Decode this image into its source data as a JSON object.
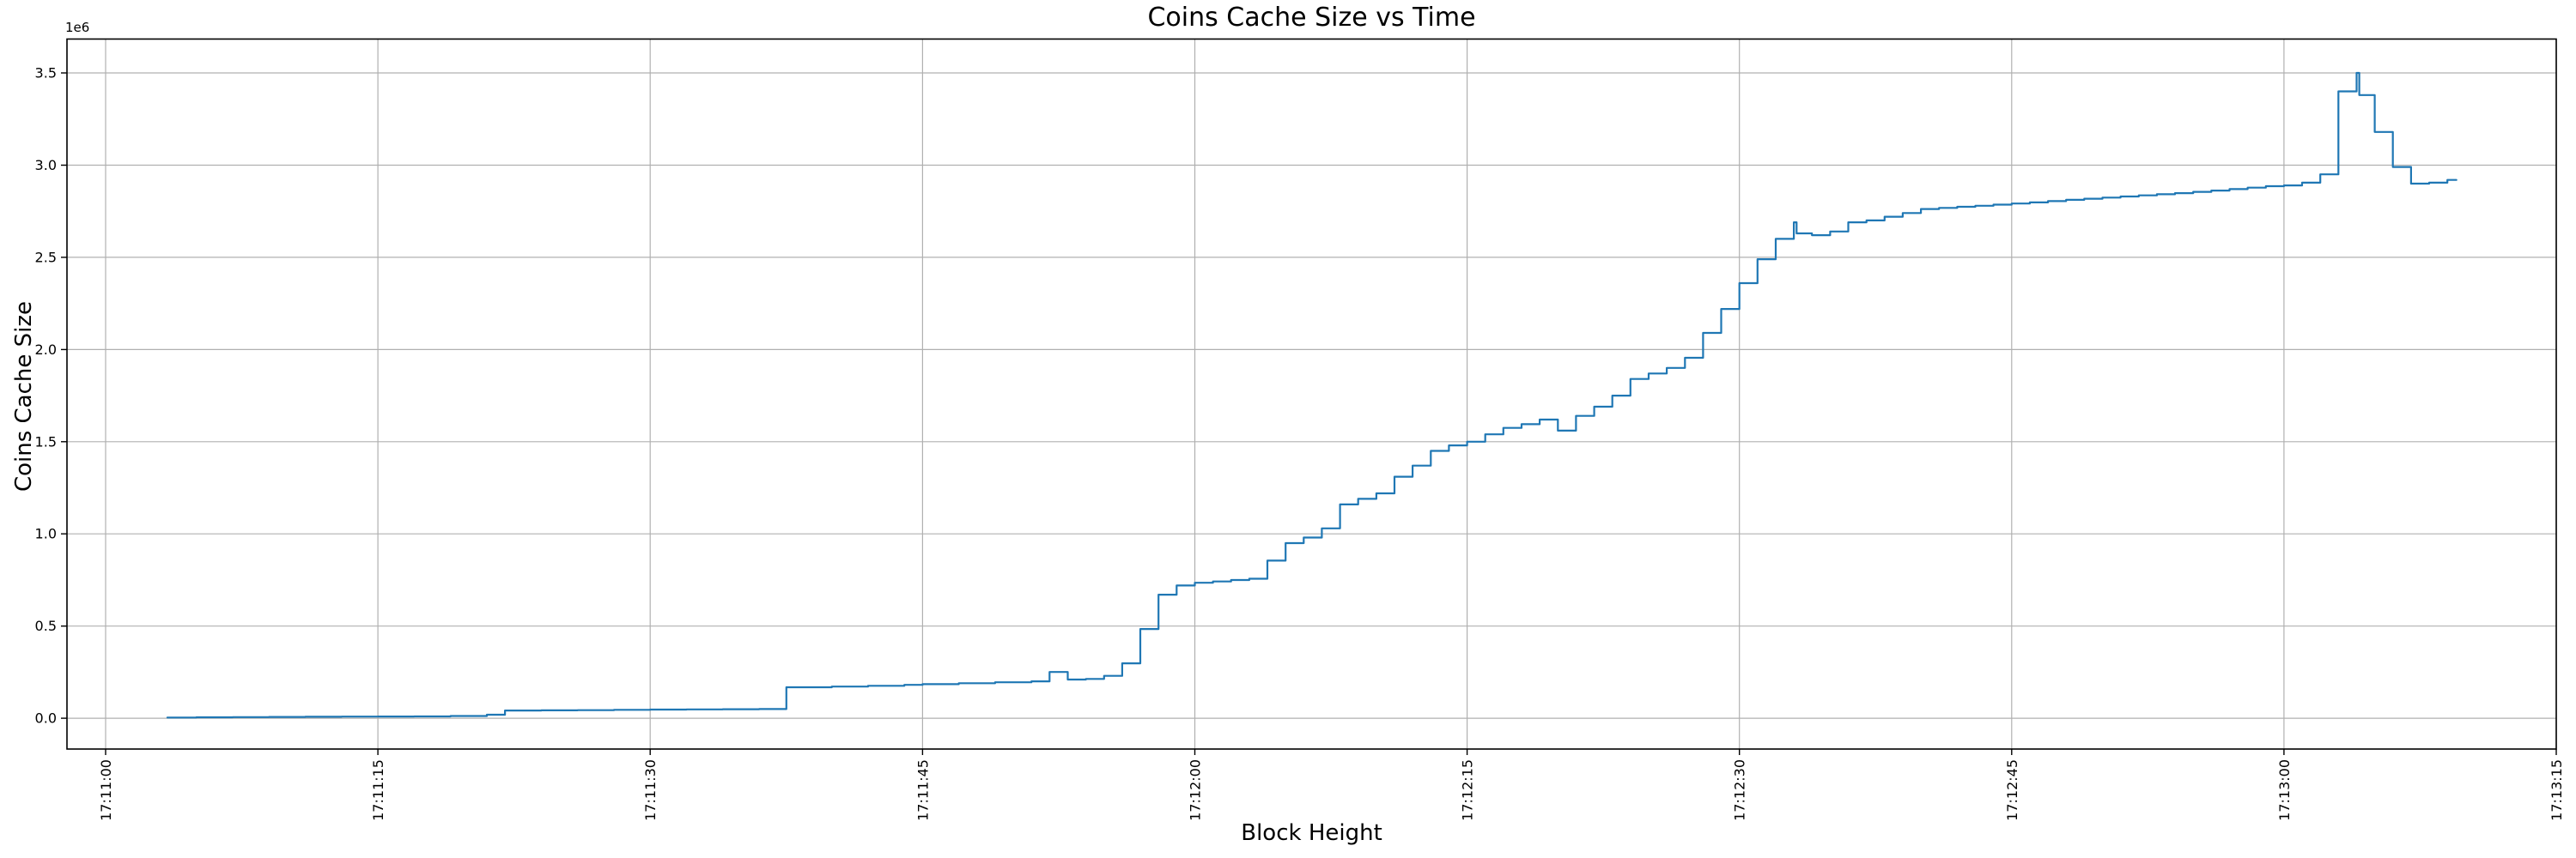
{
  "chart_data": {
    "type": "line",
    "drawstyle": "steps-post",
    "title": "Coins Cache Size vs Time",
    "xlabel": "Block Height",
    "ylabel": "Coins Cache Size",
    "y_offset_multiplier": "1e6",
    "grid": true,
    "legend": false,
    "time_origin": "17:11:00",
    "xlim_seconds": [
      -2.13,
      135.0
    ],
    "ylim": [
      -167000,
      3684000
    ],
    "x_ticks": {
      "seconds": [
        0,
        15,
        30,
        45,
        60,
        75,
        90,
        105,
        120,
        135
      ],
      "labels": [
        "17:11:00",
        "17:11:15",
        "17:11:30",
        "17:11:45",
        "17:12:00",
        "17:12:15",
        "17:12:30",
        "17:12:45",
        "17:13:00",
        "17:13:15"
      ]
    },
    "y_ticks": {
      "values": [
        0,
        500000,
        1000000,
        1500000,
        2000000,
        2500000,
        3000000,
        3500000
      ],
      "labels": [
        "0.0",
        "0.5",
        "1.0",
        "1.5",
        "2.0",
        "2.5",
        "3.0",
        "3.5"
      ]
    },
    "style": {
      "line_color": "#1f77b4",
      "grid_color": "#b0b0b0",
      "spine_color": "#000000",
      "background": "#ffffff"
    },
    "series": [
      {
        "name": "coins_cache_size",
        "color": "#1f77b4",
        "points": [
          [
            3.4,
            4000
          ],
          [
            5,
            5000
          ],
          [
            7,
            6000
          ],
          [
            9,
            7000
          ],
          [
            11,
            8000
          ],
          [
            13,
            9000
          ],
          [
            15,
            9500
          ],
          [
            17,
            10000
          ],
          [
            19,
            12000
          ],
          [
            21,
            19000
          ],
          [
            22,
            42000
          ],
          [
            24,
            43000
          ],
          [
            26,
            44000
          ],
          [
            28,
            45500
          ],
          [
            30,
            47000
          ],
          [
            32,
            48000
          ],
          [
            34,
            49000
          ],
          [
            36,
            50000
          ],
          [
            37.5,
            168000
          ],
          [
            40,
            172000
          ],
          [
            42,
            176000
          ],
          [
            44,
            181000
          ],
          [
            45,
            185000
          ],
          [
            47,
            190000
          ],
          [
            49,
            195000
          ],
          [
            51,
            200000
          ],
          [
            52,
            251000
          ],
          [
            53,
            210000
          ],
          [
            54,
            213000
          ],
          [
            55,
            230000
          ],
          [
            56,
            298000
          ],
          [
            57,
            484000
          ],
          [
            58,
            670000
          ],
          [
            59,
            720000
          ],
          [
            60,
            735000
          ],
          [
            61,
            742000
          ],
          [
            62,
            750000
          ],
          [
            63,
            757000
          ],
          [
            64,
            855000
          ],
          [
            65,
            950000
          ],
          [
            66,
            980000
          ],
          [
            67,
            1030000
          ],
          [
            68,
            1160000
          ],
          [
            69,
            1190000
          ],
          [
            70,
            1220000
          ],
          [
            71,
            1310000
          ],
          [
            72,
            1370000
          ],
          [
            73,
            1450000
          ],
          [
            74,
            1480000
          ],
          [
            75,
            1500000
          ],
          [
            76,
            1540000
          ],
          [
            77,
            1575000
          ],
          [
            78,
            1595000
          ],
          [
            79,
            1620000
          ],
          [
            80,
            1560000
          ],
          [
            81,
            1640000
          ],
          [
            82,
            1690000
          ],
          [
            83,
            1750000
          ],
          [
            84,
            1840000
          ],
          [
            85,
            1870000
          ],
          [
            86,
            1900000
          ],
          [
            87,
            1955000
          ],
          [
            88,
            2090000
          ],
          [
            89,
            2220000
          ],
          [
            90,
            2360000
          ],
          [
            91,
            2490000
          ],
          [
            92,
            2600000
          ],
          [
            93,
            2690000
          ],
          [
            93.15,
            2630000
          ],
          [
            94,
            2620000
          ],
          [
            95,
            2640000
          ],
          [
            96,
            2690000
          ],
          [
            97,
            2700000
          ],
          [
            98,
            2720000
          ],
          [
            99,
            2740000
          ],
          [
            100,
            2762000
          ],
          [
            101,
            2768000
          ],
          [
            102,
            2774000
          ],
          [
            103,
            2780000
          ],
          [
            104,
            2786000
          ],
          [
            105,
            2792000
          ],
          [
            106,
            2798000
          ],
          [
            107,
            2805000
          ],
          [
            108,
            2812000
          ],
          [
            109,
            2818000
          ],
          [
            110,
            2824000
          ],
          [
            111,
            2830000
          ],
          [
            112,
            2836000
          ],
          [
            113,
            2842000
          ],
          [
            114,
            2848000
          ],
          [
            115,
            2855000
          ],
          [
            116,
            2862000
          ],
          [
            117,
            2870000
          ],
          [
            118,
            2878000
          ],
          [
            119,
            2886000
          ],
          [
            120,
            2890000
          ],
          [
            121,
            2905000
          ],
          [
            122,
            2950000
          ],
          [
            123,
            3400000
          ],
          [
            124,
            3500000
          ],
          [
            124.15,
            3380000
          ],
          [
            125,
            3180000
          ],
          [
            126,
            2990000
          ],
          [
            127,
            2900000
          ],
          [
            128,
            2905000
          ],
          [
            129,
            2920000
          ],
          [
            129.5,
            2920000
          ]
        ]
      }
    ]
  }
}
